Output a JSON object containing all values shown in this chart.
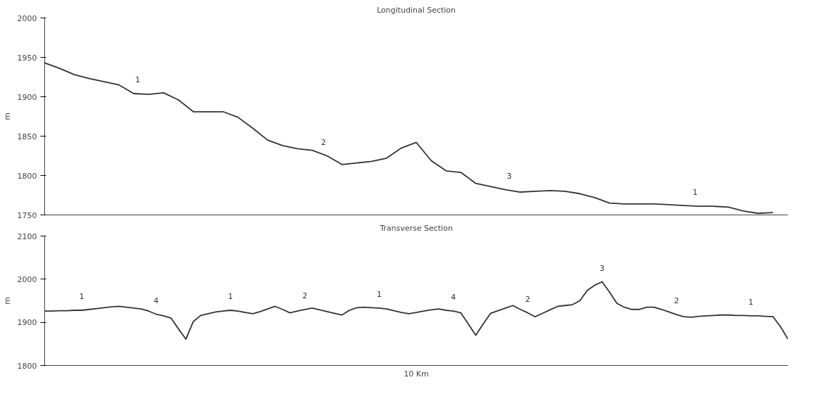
{
  "chart_data": [
    {
      "type": "line",
      "title": "Longitudinal Section",
      "ylabel": "m",
      "color": "#333333",
      "ylim": [
        1750,
        2000
      ],
      "yticks": [
        1750,
        1800,
        1850,
        1900,
        1950,
        2000
      ],
      "grid": false,
      "categories": [
        null,
        null,
        null,
        null,
        null,
        null,
        null,
        null,
        null,
        null,
        null,
        null,
        null,
        null,
        null,
        null,
        null,
        null,
        null,
        null,
        null,
        null,
        null,
        null,
        null,
        null,
        null,
        null,
        null,
        null,
        null,
        null,
        null,
        null,
        null,
        null,
        null,
        null,
        null,
        null,
        null,
        null,
        null,
        null,
        null,
        null,
        null,
        null,
        null,
        null,
        null
      ],
      "values": [
        1943,
        1936,
        1928,
        1923,
        1919,
        1915,
        1904,
        1903,
        1905,
        1896,
        1881,
        1881,
        1881,
        1874,
        1860,
        1845,
        1838,
        1834,
        1832,
        1825,
        1814,
        1816,
        1818,
        1822,
        1835,
        1842,
        1819,
        1806,
        1804,
        1790,
        1786,
        1782,
        1779,
        1780,
        1781,
        1780,
        1777,
        1772,
        1765,
        1764,
        1764,
        1764,
        1763,
        1762,
        1761,
        1761,
        1760,
        1755,
        1752,
        1753,
        null
      ],
      "annotations": [
        "1",
        "2",
        "3",
        "1"
      ]
    },
    {
      "type": "line",
      "title": "Transverse Section",
      "ylabel": "m",
      "color": "#333333",
      "ylim": [
        1800,
        2100
      ],
      "yticks": [
        1800,
        1900,
        2000,
        2100
      ],
      "grid": false,
      "categories": [
        null,
        null,
        null,
        null,
        null,
        null,
        null,
        null,
        null,
        null,
        null,
        null,
        null,
        null,
        null,
        null,
        null,
        null,
        null,
        null,
        null,
        null,
        null,
        null,
        null,
        null,
        null,
        null,
        null,
        null,
        null,
        null,
        null,
        null,
        null,
        null,
        null,
        null,
        null,
        null,
        null,
        null,
        null,
        null,
        null,
        null,
        null,
        null,
        null,
        null,
        null,
        null,
        null,
        null,
        null,
        null,
        null,
        null,
        null,
        null,
        null,
        null,
        null,
        null,
        null,
        null,
        null,
        null,
        null,
        null,
        null,
        null,
        null,
        null,
        null,
        null,
        null,
        null,
        null,
        null,
        null,
        null,
        null,
        null,
        null,
        null,
        null,
        null,
        null,
        null,
        null,
        null,
        null,
        null,
        null,
        null,
        null,
        null,
        null,
        null,
        null
      ],
      "values": [
        1926,
        1926,
        1927,
        1927,
        1928,
        1928,
        1930,
        1932,
        1934,
        1936,
        1937,
        1935,
        1933,
        1931,
        1926,
        1919,
        1915,
        1910,
        1885,
        1861,
        1902,
        1916,
        1920,
        1924,
        1926,
        1928,
        1926,
        1923,
        1920,
        1925,
        1931,
        1937,
        1930,
        1922,
        1926,
        1930,
        1933,
        1929,
        1925,
        1921,
        1917,
        1928,
        1934,
        1935,
        1934,
        1933,
        1931,
        1927,
        1923,
        1920,
        1923,
        1926,
        1929,
        1931,
        1928,
        1926,
        1922,
        1896,
        1870,
        1896,
        1921,
        1927,
        1933,
        1939,
        1930,
        1922,
        1913,
        1921,
        1929,
        1937,
        1939,
        1941,
        1950,
        1974,
        1986,
        1994,
        1970,
        1944,
        1935,
        1930,
        1930,
        1935,
        1935,
        1930,
        1924,
        1918,
        1913,
        1912,
        1914,
        1915,
        1916,
        1917,
        1917,
        1916,
        1916,
        1915,
        1915,
        1914,
        1913,
        1890,
        1861
      ],
      "xlabel": "10 Km",
      "annotations": [
        "1",
        "4",
        "1",
        "2",
        "1",
        "4",
        "2",
        "3",
        "2",
        "1"
      ]
    }
  ]
}
